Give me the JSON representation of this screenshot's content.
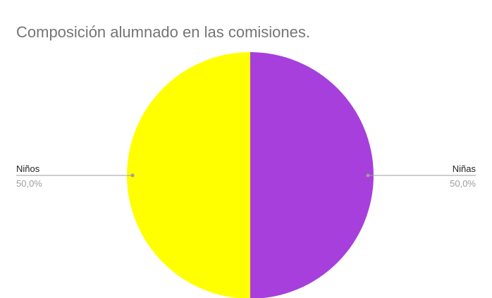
{
  "chart_data": {
    "type": "pie",
    "title": "Composición alumnado en las comisiones.",
    "slices": [
      {
        "label": "Niñas",
        "value": 50.0,
        "percent_label": "50,0%",
        "color": "#a63fdc"
      },
      {
        "label": "Niños",
        "value": 50.0,
        "percent_label": "50,0%",
        "color": "#ffff00"
      }
    ],
    "legend": "none",
    "labels": "outside with leader lines"
  },
  "colors": {
    "leader_line": "#9e9e9e",
    "title": "#757575"
  }
}
